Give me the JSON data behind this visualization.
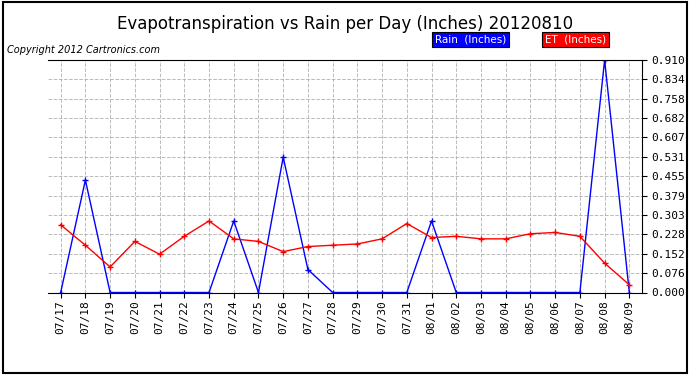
{
  "title": "Evapotranspiration vs Rain per Day (Inches) 20120810",
  "copyright": "Copyright 2012 Cartronics.com",
  "labels": [
    "07/17",
    "07/18",
    "07/19",
    "07/20",
    "07/21",
    "07/22",
    "07/23",
    "07/24",
    "07/25",
    "07/26",
    "07/27",
    "07/28",
    "07/29",
    "07/30",
    "07/31",
    "08/01",
    "08/02",
    "08/03",
    "08/04",
    "08/05",
    "08/06",
    "08/07",
    "08/08",
    "08/09"
  ],
  "rain": [
    0.0,
    0.44,
    0.0,
    0.0,
    0.0,
    0.0,
    0.0,
    0.28,
    0.0,
    0.53,
    0.09,
    0.0,
    0.0,
    0.0,
    0.0,
    0.28,
    0.0,
    0.0,
    0.0,
    0.0,
    0.0,
    0.0,
    0.91,
    0.0
  ],
  "et": [
    0.265,
    0.185,
    0.1,
    0.2,
    0.15,
    0.22,
    0.28,
    0.21,
    0.2,
    0.16,
    0.18,
    0.185,
    0.19,
    0.21,
    0.27,
    0.215,
    0.22,
    0.21,
    0.21,
    0.23,
    0.235,
    0.22,
    0.115,
    0.03
  ],
  "rain_color": "#0000ff",
  "et_color": "#ff0000",
  "background_color": "#ffffff",
  "grid_color": "#aaaaaa",
  "ylim": [
    0.0,
    0.91
  ],
  "yticks": [
    0.0,
    0.076,
    0.152,
    0.228,
    0.303,
    0.379,
    0.455,
    0.531,
    0.607,
    0.682,
    0.758,
    0.834,
    0.91
  ],
  "title_fontsize": 12,
  "tick_fontsize": 8,
  "legend_rain_label": "Rain  (Inches)",
  "legend_et_label": "ET  (Inches)"
}
